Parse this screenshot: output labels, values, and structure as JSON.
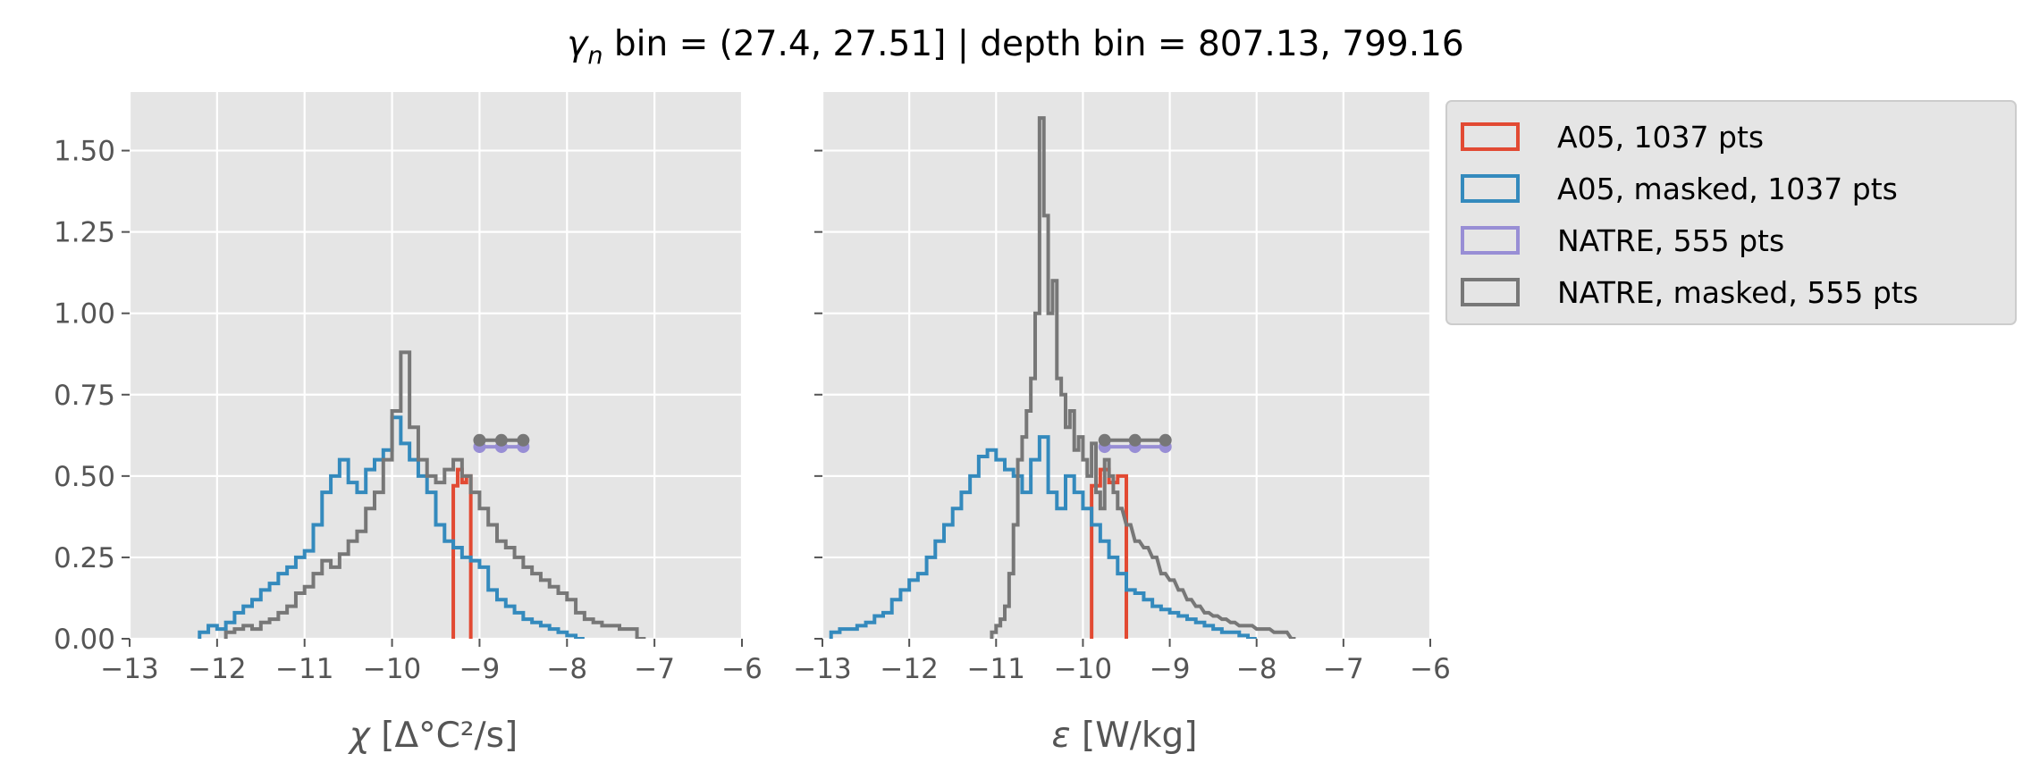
{
  "chart_data": {
    "type": "histogram-step",
    "title": {
      "symbol": "γ",
      "subscript": "n",
      "text": " bin = (27.4, 27.51] | depth bin = 807.13, 799.16"
    },
    "panels": [
      {
        "xlabel_symbol": "χ",
        "xlabel": " [Δ°C²/s]",
        "xlim": [
          -13,
          -6
        ],
        "ylim": [
          0,
          1.68
        ],
        "xticks": [
          -13,
          -12,
          -11,
          -10,
          -9,
          -8,
          -7,
          -6
        ],
        "yticks": [
          0,
          0.25,
          0.5,
          0.75,
          1.0,
          1.25,
          1.5
        ],
        "ytick_labels": [
          "0.00",
          "0.25",
          "0.50",
          "0.75",
          "1.00",
          "1.25",
          "1.50"
        ],
        "series": [
          {
            "ref": "a05",
            "kind": "step",
            "x": [
              -9.3,
              -9.25,
              -9.2,
              -9.15
            ],
            "y": [
              0.47,
              0.52,
              0.48,
              0.5
            ]
          },
          {
            "ref": "a05-masked",
            "kind": "step",
            "x": [
              -12.2,
              -12.1,
              -12.0,
              -11.9,
              -11.8,
              -11.7,
              -11.6,
              -11.5,
              -11.4,
              -11.3,
              -11.2,
              -11.1,
              -11.0,
              -10.9,
              -10.8,
              -10.7,
              -10.6,
              -10.5,
              -10.4,
              -10.3,
              -10.2,
              -10.1,
              -10.0,
              -9.9,
              -9.8,
              -9.7,
              -9.6,
              -9.5,
              -9.4,
              -9.3,
              -9.2,
              -9.1,
              -9.0,
              -8.9,
              -8.8,
              -8.7,
              -8.6,
              -8.5,
              -8.4,
              -8.3,
              -8.2,
              -8.1,
              -8.0,
              -7.9
            ],
            "y": [
              0.02,
              0.04,
              0.03,
              0.05,
              0.08,
              0.1,
              0.12,
              0.15,
              0.17,
              0.2,
              0.22,
              0.25,
              0.27,
              0.35,
              0.45,
              0.5,
              0.55,
              0.48,
              0.45,
              0.52,
              0.55,
              0.58,
              0.68,
              0.6,
              0.55,
              0.5,
              0.45,
              0.35,
              0.3,
              0.28,
              0.25,
              0.24,
              0.22,
              0.15,
              0.12,
              0.1,
              0.08,
              0.06,
              0.05,
              0.04,
              0.03,
              0.02,
              0.01,
              0.0
            ]
          },
          {
            "ref": "natre",
            "kind": "line",
            "x": [
              -9.0,
              -8.75,
              -8.5
            ],
            "y": [
              0.59,
              0.59,
              0.59
            ],
            "markers": true
          },
          {
            "ref": "natre-masked",
            "kind": "step",
            "x": [
              -11.9,
              -11.8,
              -11.7,
              -11.6,
              -11.5,
              -11.4,
              -11.3,
              -11.2,
              -11.1,
              -11.0,
              -10.9,
              -10.8,
              -10.7,
              -10.6,
              -10.5,
              -10.4,
              -10.3,
              -10.2,
              -10.1,
              -10.0,
              -9.9,
              -9.8,
              -9.7,
              -9.6,
              -9.5,
              -9.4,
              -9.3,
              -9.2,
              -9.1,
              -9.0,
              -8.9,
              -8.8,
              -8.7,
              -8.6,
              -8.5,
              -8.4,
              -8.3,
              -8.2,
              -8.1,
              -8.0,
              -7.9,
              -7.8,
              -7.7,
              -7.6,
              -7.5,
              -7.4,
              -7.3,
              -7.2
            ],
            "y": [
              0.02,
              0.03,
              0.04,
              0.03,
              0.05,
              0.06,
              0.08,
              0.1,
              0.14,
              0.16,
              0.2,
              0.24,
              0.22,
              0.26,
              0.3,
              0.33,
              0.4,
              0.45,
              0.55,
              0.7,
              0.88,
              0.65,
              0.55,
              0.5,
              0.48,
              0.52,
              0.55,
              0.5,
              0.45,
              0.4,
              0.35,
              0.3,
              0.28,
              0.25,
              0.22,
              0.2,
              0.18,
              0.16,
              0.14,
              0.12,
              0.08,
              0.06,
              0.05,
              0.04,
              0.04,
              0.03,
              0.03,
              0.0
            ]
          },
          {
            "ref": "natre-masked",
            "kind": "line",
            "x": [
              -9.0,
              -8.75,
              -8.5
            ],
            "y": [
              0.61,
              0.61,
              0.61
            ],
            "markers": true
          }
        ]
      },
      {
        "xlabel_symbol": "ε",
        "xlabel": " [W/kg]",
        "xlim": [
          -13,
          -6
        ],
        "ylim": [
          0,
          1.68
        ],
        "xticks": [
          -13,
          -12,
          -11,
          -10,
          -9,
          -8,
          -7,
          -6
        ],
        "yticks": [
          0,
          0.25,
          0.5,
          0.75,
          1.0,
          1.25,
          1.5
        ],
        "ytick_labels": [
          "",
          "",
          "",
          "",
          "",
          "",
          ""
        ],
        "series": [
          {
            "ref": "a05",
            "kind": "step",
            "x": [
              -9.9,
              -9.8,
              -9.7,
              -9.6
            ],
            "y": [
              0.47,
              0.52,
              0.48,
              0.5
            ]
          },
          {
            "ref": "a05-masked",
            "kind": "step",
            "x": [
              -12.9,
              -12.8,
              -12.7,
              -12.6,
              -12.5,
              -12.4,
              -12.3,
              -12.2,
              -12.1,
              -12.0,
              -11.9,
              -11.8,
              -11.7,
              -11.6,
              -11.5,
              -11.4,
              -11.3,
              -11.2,
              -11.1,
              -11.0,
              -10.9,
              -10.8,
              -10.7,
              -10.6,
              -10.5,
              -10.4,
              -10.3,
              -10.2,
              -10.1,
              -10.0,
              -9.9,
              -9.8,
              -9.7,
              -9.6,
              -9.5,
              -9.4,
              -9.3,
              -9.2,
              -9.1,
              -9.0,
              -8.9,
              -8.8,
              -8.7,
              -8.6,
              -8.5,
              -8.4,
              -8.3,
              -8.2,
              -8.1
            ],
            "y": [
              0.02,
              0.03,
              0.03,
              0.04,
              0.05,
              0.07,
              0.08,
              0.12,
              0.15,
              0.18,
              0.2,
              0.25,
              0.3,
              0.35,
              0.4,
              0.45,
              0.5,
              0.56,
              0.58,
              0.55,
              0.52,
              0.5,
              0.45,
              0.55,
              0.62,
              0.45,
              0.4,
              0.5,
              0.45,
              0.4,
              0.35,
              0.3,
              0.25,
              0.2,
              0.15,
              0.14,
              0.12,
              0.1,
              0.09,
              0.08,
              0.07,
              0.06,
              0.05,
              0.04,
              0.03,
              0.02,
              0.02,
              0.01,
              0.0
            ]
          },
          {
            "ref": "natre",
            "kind": "line",
            "x": [
              -9.75,
              -9.4,
              -9.05
            ],
            "y": [
              0.59,
              0.59,
              0.59
            ],
            "markers": true
          },
          {
            "ref": "natre-masked",
            "kind": "step",
            "x": [
              -11.05,
              -11.0,
              -10.95,
              -10.9,
              -10.85,
              -10.8,
              -10.75,
              -10.7,
              -10.65,
              -10.6,
              -10.55,
              -10.5,
              -10.45,
              -10.4,
              -10.35,
              -10.3,
              -10.25,
              -10.2,
              -10.15,
              -10.1,
              -10.05,
              -10.0,
              -9.95,
              -9.9,
              -9.85,
              -9.8,
              -9.75,
              -9.7,
              -9.65,
              -9.6,
              -9.5,
              -9.4,
              -9.3,
              -9.2,
              -9.1,
              -9.0,
              -8.9,
              -8.8,
              -8.7,
              -8.6,
              -8.5,
              -8.4,
              -8.3,
              -8.2,
              -8.1,
              -8.0,
              -7.9,
              -7.8,
              -7.7,
              -7.6
            ],
            "y": [
              0.02,
              0.04,
              0.06,
              0.1,
              0.2,
              0.35,
              0.55,
              0.62,
              0.7,
              0.8,
              1.0,
              1.6,
              1.3,
              1.0,
              1.1,
              0.8,
              0.75,
              0.65,
              0.7,
              0.58,
              0.62,
              0.55,
              0.5,
              0.6,
              0.45,
              0.4,
              0.55,
              0.5,
              0.45,
              0.4,
              0.35,
              0.3,
              0.28,
              0.25,
              0.2,
              0.18,
              0.15,
              0.12,
              0.1,
              0.08,
              0.07,
              0.06,
              0.05,
              0.04,
              0.04,
              0.03,
              0.03,
              0.02,
              0.02,
              0.0
            ]
          },
          {
            "ref": "natre-masked",
            "kind": "line",
            "x": [
              -9.75,
              -9.4,
              -9.05
            ],
            "y": [
              0.61,
              0.61,
              0.61
            ],
            "markers": true
          }
        ]
      }
    ],
    "legend": {
      "placement": "outside-right-top",
      "entries": [
        {
          "ref": "a05",
          "label": "A05, 1037 pts",
          "color": "#E24A33"
        },
        {
          "ref": "a05-masked",
          "label": "A05, masked,  1037 pts",
          "color": "#348ABD"
        },
        {
          "ref": "natre",
          "label": "NATRE, 555 pts",
          "color": "#988ED5"
        },
        {
          "ref": "natre-masked",
          "label": "NATRE, masked,  555 pts",
          "color": "#777777"
        }
      ]
    },
    "grid": true,
    "colors": {
      "axes_bg": "#E5E5E5",
      "grid": "#FFFFFF",
      "tick": "#555555"
    }
  }
}
